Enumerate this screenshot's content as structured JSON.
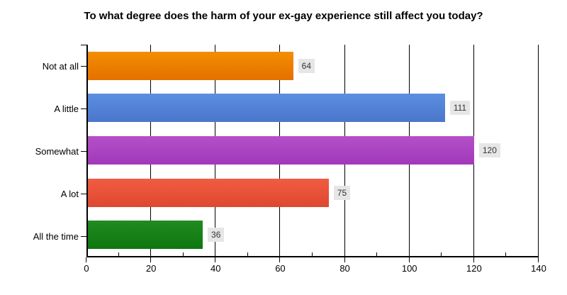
{
  "chart_data": {
    "type": "bar",
    "orientation": "horizontal",
    "title": "To what degree does the harm of your ex-gay experience still affect you today?",
    "categories": [
      "Not at all",
      "A little",
      "Somewhat",
      "A lot",
      "All the time"
    ],
    "values": [
      64,
      111,
      120,
      75,
      36
    ],
    "series": [
      {
        "name": "responses",
        "values": [
          64,
          111,
          120,
          75,
          36
        ]
      }
    ],
    "bar_colors": [
      "#EE8000",
      "#5285DA",
      "#AC43C0",
      "#E65138",
      "#17801A"
    ],
    "bar_gradients": [
      [
        "#F28E00",
        "#E57000"
      ],
      [
        "#5C8EE0",
        "#4B76CB"
      ],
      [
        "#B450C8",
        "#A138B9"
      ],
      [
        "#F15C41",
        "#DD4830"
      ],
      [
        "#218A21",
        "#0E770E"
      ]
    ],
    "xlabel": "",
    "ylabel": "",
    "xlim": [
      0,
      140
    ],
    "x_ticks": [
      0,
      20,
      40,
      60,
      80,
      100,
      120,
      140
    ],
    "minor_tick_interval": 10,
    "grid": true,
    "legend": "none",
    "value_labels": [
      "64",
      "111",
      "120",
      "75",
      "36"
    ],
    "colors": {
      "background": "#FFFFFF",
      "axis": "#000000",
      "gridline": "#000000",
      "title_text": "#000000",
      "tick_label_text": "#000000",
      "value_box_background": "#E6E6E6",
      "value_box_text": "#333333"
    }
  }
}
